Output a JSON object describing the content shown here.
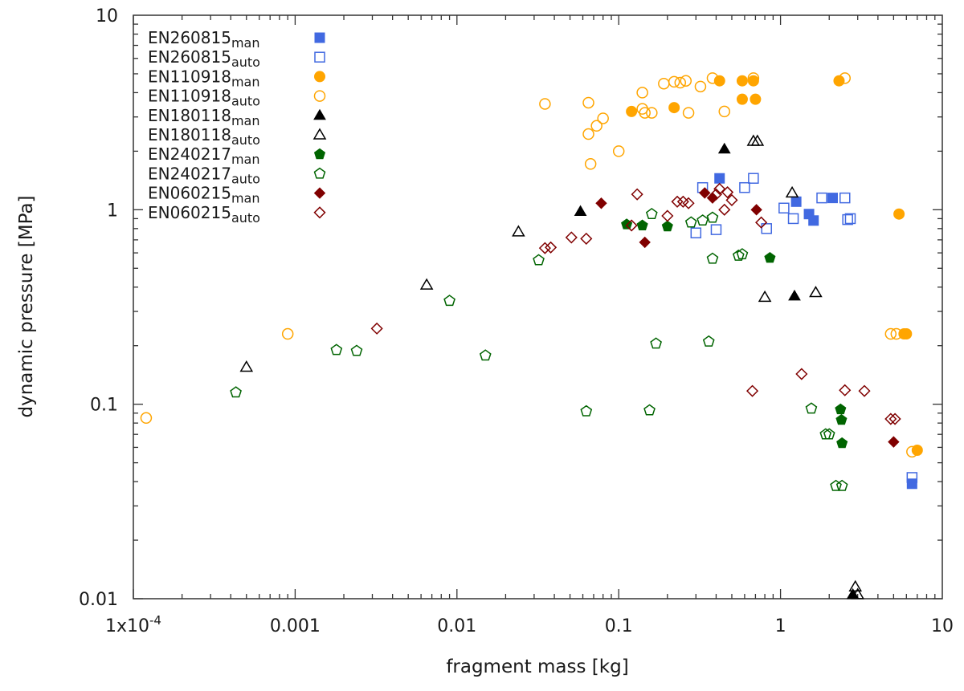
{
  "chart_data": {
    "type": "scatter",
    "xscale": "log",
    "yscale": "log",
    "xlabel": "fragment mass [kg]",
    "ylabel": "dynamic pressure [MPa]",
    "xlim": [
      0.0001,
      10
    ],
    "ylim": [
      0.01,
      10
    ],
    "x_ticks": [
      {
        "value": 0.0001,
        "label": "1x10-4"
      },
      {
        "value": 0.001,
        "label": "0.001"
      },
      {
        "value": 0.01,
        "label": "0.01"
      },
      {
        "value": 0.1,
        "label": "0.1"
      },
      {
        "value": 1,
        "label": "1"
      },
      {
        "value": 10,
        "label": "10"
      }
    ],
    "y_ticks": [
      {
        "value": 0.01,
        "label": "0.01"
      },
      {
        "value": 0.1,
        "label": "0.1"
      },
      {
        "value": 1,
        "label": "1"
      },
      {
        "value": 10,
        "label": "10"
      }
    ],
    "grid": false,
    "legend_position": "top-left",
    "series": [
      {
        "name": "EN260815",
        "sub": "man",
        "marker": "square",
        "filled": true,
        "color": "#4169e1",
        "points": [
          [
            0.42,
            1.45
          ],
          [
            1.25,
            1.1
          ],
          [
            1.5,
            0.95
          ],
          [
            1.6,
            0.88
          ],
          [
            2.1,
            1.15
          ],
          [
            6.5,
            0.039
          ]
        ]
      },
      {
        "name": "EN260815",
        "sub": "auto",
        "marker": "square",
        "filled": false,
        "color": "#4169e1",
        "points": [
          [
            0.3,
            0.76
          ],
          [
            0.33,
            1.3
          ],
          [
            0.4,
            0.79
          ],
          [
            0.6,
            1.3
          ],
          [
            0.68,
            1.45
          ],
          [
            0.82,
            0.8
          ],
          [
            1.05,
            1.02
          ],
          [
            1.2,
            0.9
          ],
          [
            1.8,
            1.15
          ],
          [
            2.5,
            1.15
          ],
          [
            2.6,
            0.89
          ],
          [
            2.7,
            0.9
          ],
          [
            6.5,
            0.042
          ]
        ]
      },
      {
        "name": "EN110918",
        "sub": "man",
        "marker": "circle",
        "filled": true,
        "color": "#ffa500",
        "points": [
          [
            0.12,
            3.2
          ],
          [
            0.22,
            3.35
          ],
          [
            0.42,
            4.6
          ],
          [
            0.58,
            4.6
          ],
          [
            0.58,
            3.7
          ],
          [
            0.68,
            4.6
          ],
          [
            0.7,
            3.7
          ],
          [
            2.3,
            4.6
          ],
          [
            5.4,
            0.95
          ],
          [
            5.8,
            0.23
          ],
          [
            6.0,
            0.23
          ],
          [
            7.0,
            0.058
          ]
        ]
      },
      {
        "name": "EN110918",
        "sub": "auto",
        "marker": "circle",
        "filled": false,
        "color": "#ffa500",
        "points": [
          [
            0.00012,
            0.085
          ],
          [
            0.0009,
            0.23
          ],
          [
            0.035,
            3.5
          ],
          [
            0.065,
            3.55
          ],
          [
            0.065,
            2.45
          ],
          [
            0.067,
            1.72
          ],
          [
            0.073,
            2.7
          ],
          [
            0.08,
            2.95
          ],
          [
            0.1,
            2.0
          ],
          [
            0.14,
            4.0
          ],
          [
            0.14,
            3.3
          ],
          [
            0.145,
            3.15
          ],
          [
            0.16,
            3.15
          ],
          [
            0.19,
            4.45
          ],
          [
            0.22,
            4.55
          ],
          [
            0.24,
            4.5
          ],
          [
            0.26,
            4.6
          ],
          [
            0.27,
            3.15
          ],
          [
            0.32,
            4.3
          ],
          [
            0.38,
            4.75
          ],
          [
            0.45,
            3.2
          ],
          [
            0.68,
            4.75
          ],
          [
            2.5,
            4.75
          ],
          [
            4.8,
            0.23
          ],
          [
            5.2,
            0.23
          ],
          [
            6.5,
            0.057
          ]
        ]
      },
      {
        "name": "EN180118",
        "sub": "man",
        "marker": "triangle",
        "filled": true,
        "color": "#000000",
        "points": [
          [
            0.058,
            0.98
          ],
          [
            0.45,
            2.05
          ],
          [
            1.22,
            0.36
          ],
          [
            2.8,
            0.0105
          ]
        ]
      },
      {
        "name": "EN180118",
        "sub": "auto",
        "marker": "triangle",
        "filled": false,
        "color": "#000000",
        "points": [
          [
            0.0005,
            0.155
          ],
          [
            0.0065,
            0.41
          ],
          [
            0.024,
            0.77
          ],
          [
            0.68,
            2.25
          ],
          [
            0.72,
            2.25
          ],
          [
            0.8,
            0.355
          ],
          [
            1.18,
            1.22
          ],
          [
            1.65,
            0.375
          ],
          [
            2.9,
            0.0115
          ],
          [
            3.0,
            0.0105
          ]
        ]
      },
      {
        "name": "EN240217",
        "sub": "man",
        "marker": "pentagon",
        "filled": true,
        "color": "#006400",
        "points": [
          [
            0.112,
            0.84
          ],
          [
            0.14,
            0.83
          ],
          [
            0.2,
            0.82
          ],
          [
            0.86,
            0.565
          ],
          [
            2.35,
            0.094
          ],
          [
            2.38,
            0.083
          ],
          [
            2.4,
            0.063
          ]
        ]
      },
      {
        "name": "EN240217",
        "sub": "auto",
        "marker": "pentagon",
        "filled": false,
        "color": "#006400",
        "points": [
          [
            0.00043,
            0.115
          ],
          [
            0.0018,
            0.19
          ],
          [
            0.0024,
            0.188
          ],
          [
            0.009,
            0.34
          ],
          [
            0.015,
            0.178
          ],
          [
            0.032,
            0.55
          ],
          [
            0.063,
            0.092
          ],
          [
            0.155,
            0.093
          ],
          [
            0.16,
            0.95
          ],
          [
            0.17,
            0.205
          ],
          [
            0.28,
            0.86
          ],
          [
            0.33,
            0.88
          ],
          [
            0.36,
            0.21
          ],
          [
            0.38,
            0.91
          ],
          [
            0.38,
            0.56
          ],
          [
            0.55,
            0.58
          ],
          [
            0.58,
            0.59
          ],
          [
            1.55,
            0.095
          ],
          [
            1.9,
            0.07
          ],
          [
            2.0,
            0.07
          ],
          [
            2.2,
            0.038
          ],
          [
            2.4,
            0.038
          ]
        ]
      },
      {
        "name": "EN060215",
        "sub": "man",
        "marker": "diamond",
        "filled": true,
        "color": "#800000",
        "points": [
          [
            0.078,
            1.08
          ],
          [
            0.145,
            0.68
          ],
          [
            0.34,
            1.22
          ],
          [
            0.38,
            1.15
          ],
          [
            0.71,
            1.0
          ],
          [
            5.0,
            0.064
          ]
        ]
      },
      {
        "name": "EN060215",
        "sub": "auto",
        "marker": "diamond",
        "filled": false,
        "color": "#800000",
        "points": [
          [
            0.0032,
            0.245
          ],
          [
            0.035,
            0.635
          ],
          [
            0.038,
            0.64
          ],
          [
            0.051,
            0.72
          ],
          [
            0.063,
            0.71
          ],
          [
            0.12,
            0.83
          ],
          [
            0.13,
            1.2
          ],
          [
            0.2,
            0.93
          ],
          [
            0.23,
            1.1
          ],
          [
            0.25,
            1.1
          ],
          [
            0.27,
            1.08
          ],
          [
            0.4,
            1.2
          ],
          [
            0.42,
            1.28
          ],
          [
            0.45,
            1.0
          ],
          [
            0.47,
            1.23
          ],
          [
            0.5,
            1.12
          ],
          [
            0.67,
            0.117
          ],
          [
            0.76,
            0.86
          ],
          [
            1.35,
            0.143
          ],
          [
            2.5,
            0.118
          ],
          [
            3.3,
            0.117
          ],
          [
            4.8,
            0.084
          ],
          [
            5.1,
            0.084
          ]
        ]
      }
    ]
  }
}
